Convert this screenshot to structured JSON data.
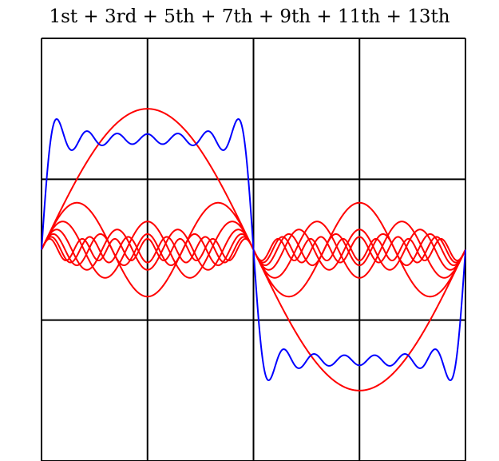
{
  "chart_data": {
    "type": "line",
    "title": "1st + 3rd + 5th + 7th + 9th + 11th + 13th",
    "xlabel": "",
    "ylabel": "",
    "xlim": [
      0,
      6.283185307
    ],
    "ylim": [
      -1.5,
      1.5
    ],
    "grid": true,
    "legend": "none",
    "series": [
      {
        "color": "#ff0000",
        "harmonic": 1,
        "amplitude": 1.0
      },
      {
        "color": "#ff0000",
        "harmonic": 3,
        "amplitude": 0.333
      },
      {
        "color": "#ff0000",
        "harmonic": 5,
        "amplitude": 0.2
      },
      {
        "color": "#ff0000",
        "harmonic": 7,
        "amplitude": 0.143
      },
      {
        "color": "#ff0000",
        "harmonic": 9,
        "amplitude": 0.111
      },
      {
        "color": "#ff0000",
        "harmonic": 11,
        "amplitude": 0.0909
      },
      {
        "color": "#ff0000",
        "harmonic": 13,
        "amplitude": 0.0769
      },
      {
        "color": "#0000ff",
        "sum_of_harmonics": [
          1,
          3,
          5,
          7,
          9,
          11,
          13
        ]
      }
    ]
  }
}
